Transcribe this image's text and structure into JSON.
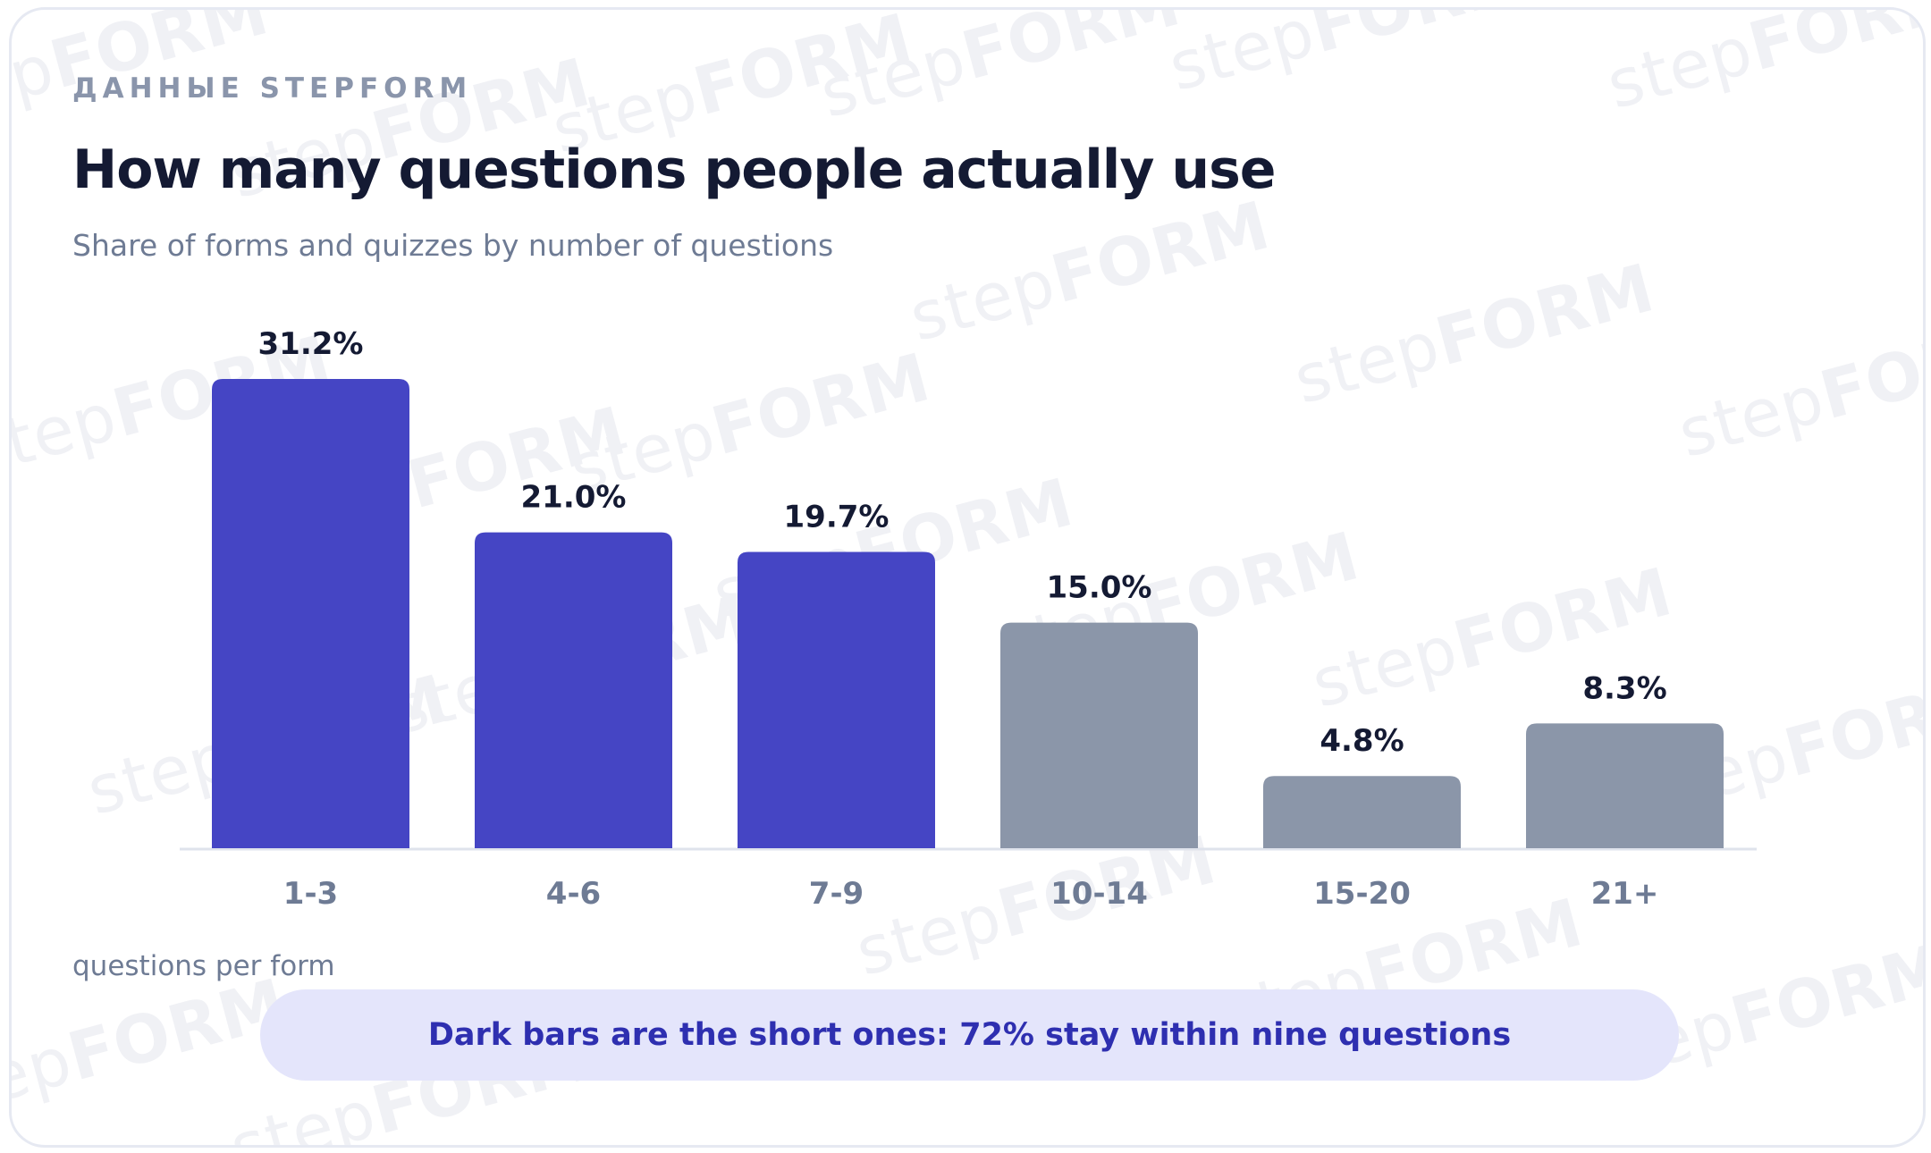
{
  "eyebrow": "ДАННЫЕ STEPFORM",
  "title": "How many questions people actually use",
  "subtitle": "Share of forms and quizzes by number of questions",
  "xlabel": "questions per form",
  "callout": "Dark bars are the short ones: 72% stay within nine questions",
  "watermark": {
    "prefix": "step",
    "suffix": "FORM"
  },
  "colors": {
    "highlight": "#4545c4",
    "muted": "#8b96a9",
    "baseline": "#dfe3ec",
    "callout_bg": "#e4e5fb"
  },
  "chart_data": {
    "type": "bar",
    "categories": [
      "1-3",
      "4-6",
      "7-9",
      "10-14",
      "15-20",
      "21+"
    ],
    "values": [
      31.2,
      21.0,
      19.7,
      15.0,
      4.8,
      8.3
    ],
    "value_labels": [
      "31.2%",
      "21.0%",
      "19.7%",
      "15.0%",
      "4.8%",
      "8.3%"
    ],
    "highlighted": [
      true,
      true,
      true,
      false,
      false,
      false
    ],
    "title": "How many questions people actually use",
    "subtitle": "Share of forms and quizzes by number of questions",
    "xlabel": "questions per form",
    "ylabel": "",
    "ylim": [
      0,
      31.2
    ],
    "grid": false,
    "legend": "none"
  }
}
